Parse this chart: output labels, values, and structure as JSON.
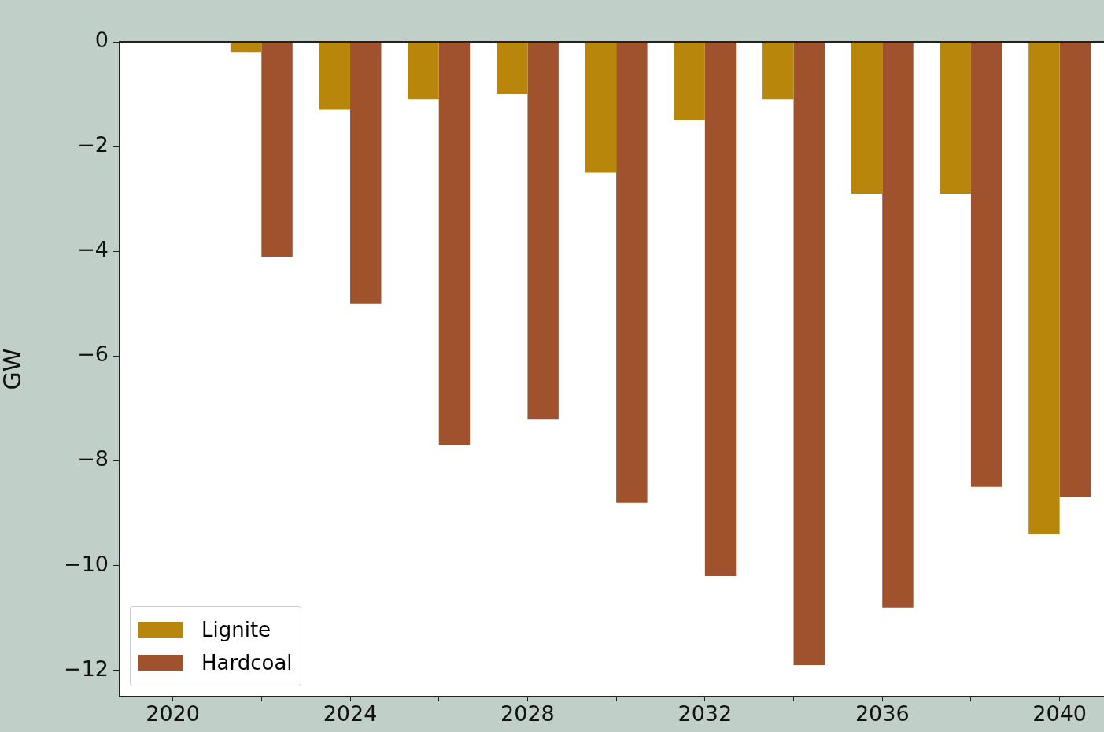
{
  "chart_data": {
    "type": "bar",
    "ylabel": "GW",
    "x": [
      2022,
      2024,
      2026,
      2028,
      2030,
      2032,
      2034,
      2036,
      2038,
      2040
    ],
    "series": [
      {
        "name": "Lignite",
        "color": "#b8860b",
        "values": [
          -0.2,
          -1.3,
          -1.1,
          -1.0,
          -2.5,
          -1.5,
          -1.1,
          -2.9,
          -2.9,
          -9.4
        ]
      },
      {
        "name": "Hardcoal",
        "color": "#a0522d",
        "values": [
          -4.1,
          -5.0,
          -7.7,
          -7.2,
          -8.8,
          -10.2,
          -11.9,
          -10.8,
          -8.5,
          -8.7
        ]
      }
    ],
    "xlim": [
      2018.8,
      2041
    ],
    "xticks": [
      2020,
      {
        "value": 2022,
        "label": null
      },
      2024,
      {
        "value": 2026,
        "label": null
      },
      2028,
      {
        "value": 2030,
        "label": null
      },
      2032,
      {
        "value": 2034,
        "label": null
      },
      2036,
      {
        "value": 2038,
        "label": null
      },
      2040
    ],
    "ylim": [
      -12.5,
      0
    ],
    "yticks": [
      {
        "value": -12,
        "label": "−12"
      },
      {
        "value": -10,
        "label": "−10"
      },
      {
        "value": -8,
        "label": "−8"
      },
      {
        "value": -6,
        "label": "−6"
      },
      {
        "value": -4,
        "label": "−4"
      },
      {
        "value": -2,
        "label": "−2"
      },
      0
    ],
    "grid": false,
    "legend": "bottom left"
  }
}
